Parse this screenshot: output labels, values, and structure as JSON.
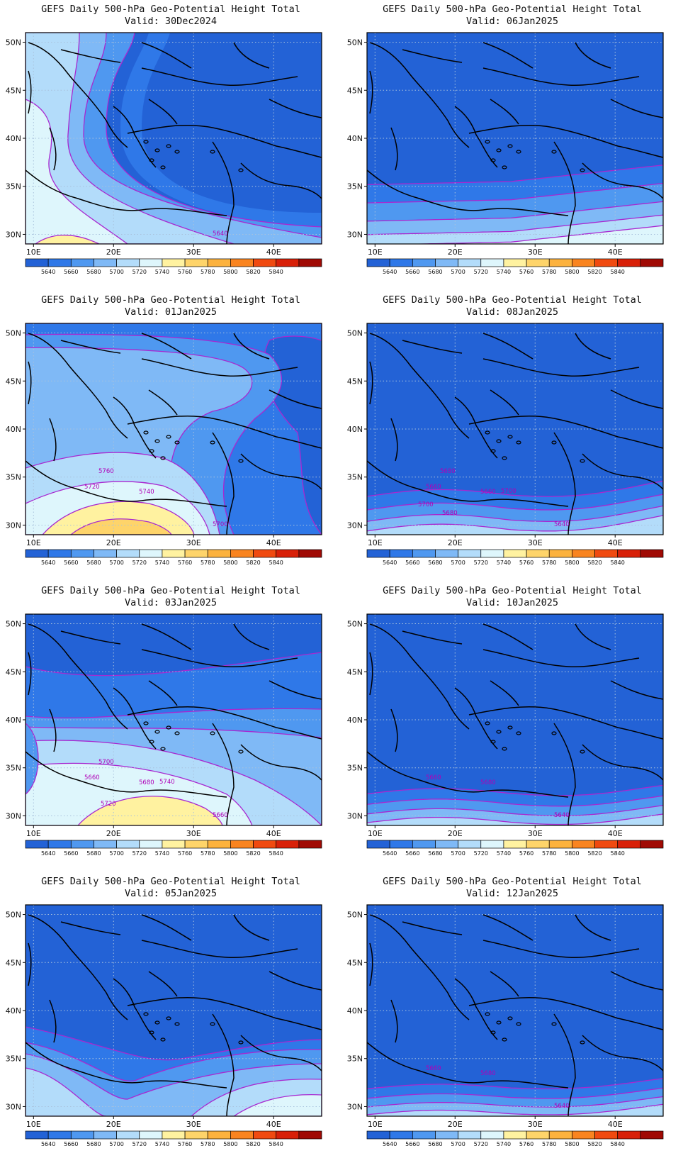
{
  "map_common": {
    "title": "GEFS Daily 500-hPa Geo-Potential Height Total",
    "valid_prefix": "Valid: ",
    "lat_labels": [
      "50N",
      "45N",
      "40N",
      "35N",
      "30N"
    ],
    "lon_labels": [
      "10E",
      "20E",
      "30E",
      "40E"
    ],
    "extent": {
      "lon_min": 9,
      "lon_max": 46,
      "lat_min": 29,
      "lat_max": 51
    },
    "colorbar": {
      "labels": [
        "5640",
        "5660",
        "5680",
        "5700",
        "5720",
        "5740",
        "5760",
        "5780",
        "5800",
        "5820",
        "5840"
      ],
      "colors": [
        "#2362d6",
        "#2f78e8",
        "#4f98f0",
        "#7fb9f6",
        "#b3dcfa",
        "#def6fc",
        "#fff2a0",
        "#fed46a",
        "#fcb23e",
        "#f98420",
        "#f04a10",
        "#d82008",
        "#a00a04"
      ]
    },
    "contour_color": "#a828d0",
    "grid": "dotted"
  },
  "panels": [
    {
      "valid": "30Dec2024",
      "column": "left",
      "row": 1,
      "contour_labels": [
        "5640"
      ]
    },
    {
      "valid": "06Jan2025",
      "column": "right",
      "row": 1,
      "contour_labels": []
    },
    {
      "valid": "01Jan2025",
      "column": "left",
      "row": 2,
      "contour_labels": [
        "5700",
        "5720",
        "5740",
        "5760"
      ]
    },
    {
      "valid": "08Jan2025",
      "column": "right",
      "row": 2,
      "contour_labels": [
        "5640",
        "5660",
        "5660",
        "5680",
        "5680",
        "5700",
        "5700"
      ]
    },
    {
      "valid": "03Jan2025",
      "column": "left",
      "row": 3,
      "contour_labels": [
        "5660",
        "5660",
        "5680",
        "5700",
        "5720",
        "5740"
      ]
    },
    {
      "valid": "10Jan2025",
      "column": "right",
      "row": 3,
      "contour_labels": [
        "5640",
        "5660",
        "5680"
      ]
    },
    {
      "valid": "05Jan2025",
      "column": "left",
      "row": 4,
      "contour_labels": []
    },
    {
      "valid": "12Jan2025",
      "column": "right",
      "row": 4,
      "contour_labels": [
        "5640",
        "5660",
        "5680"
      ]
    }
  ]
}
